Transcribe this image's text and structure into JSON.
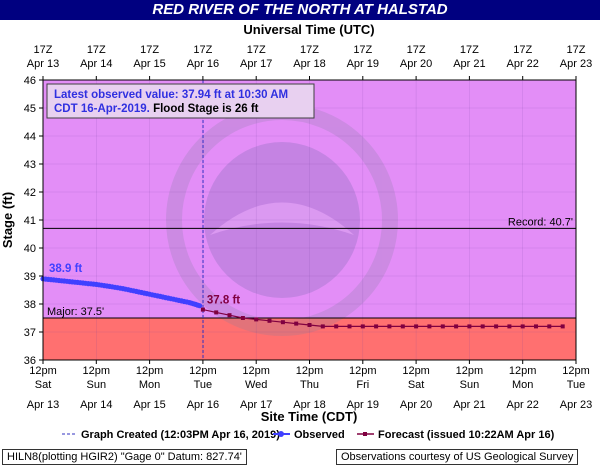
{
  "page_title": "RED RIVER OF THE NORTH AT HALSTAD",
  "footer": {
    "left": "HILN8(plotting HGIR2) \"Gage 0\" Datum: 827.74'",
    "right": "Observations courtesy of US Geological Survey"
  },
  "chart_data": {
    "type": "line",
    "top_axis_title": "Universal Time (UTC)",
    "xlabel": "Site Time (CDT)",
    "ylabel": "Stage (ft)",
    "ylim": [
      36,
      46
    ],
    "yticks": [
      36,
      37,
      38,
      39,
      40,
      41,
      42,
      43,
      44,
      45,
      46
    ],
    "x_domain_days": [
      "Apr 13",
      "Apr 23"
    ],
    "top_ticks": [
      {
        "l1": "17Z",
        "l2": "Apr 13"
      },
      {
        "l1": "17Z",
        "l2": "Apr 14"
      },
      {
        "l1": "17Z",
        "l2": "Apr 15"
      },
      {
        "l1": "17Z",
        "l2": "Apr 16"
      },
      {
        "l1": "17Z",
        "l2": "Apr 17"
      },
      {
        "l1": "17Z",
        "l2": "Apr 18"
      },
      {
        "l1": "17Z",
        "l2": "Apr 19"
      },
      {
        "l1": "17Z",
        "l2": "Apr 20"
      },
      {
        "l1": "17Z",
        "l2": "Apr 21"
      },
      {
        "l1": "17Z",
        "l2": "Apr 22"
      },
      {
        "l1": "17Z",
        "l2": "Apr 23"
      }
    ],
    "bottom_ticks": [
      {
        "l1": "12pm",
        "l2": "Sat",
        "l3": "Apr 13"
      },
      {
        "l1": "12pm",
        "l2": "Sun",
        "l3": "Apr 14"
      },
      {
        "l1": "12pm",
        "l2": "Mon",
        "l3": "Apr 15"
      },
      {
        "l1": "12pm",
        "l2": "Tue",
        "l3": "Apr 16"
      },
      {
        "l1": "12pm",
        "l2": "Wed",
        "l3": "Apr 17"
      },
      {
        "l1": "12pm",
        "l2": "Thu",
        "l3": "Apr 18"
      },
      {
        "l1": "12pm",
        "l2": "Fri",
        "l3": "Apr 19"
      },
      {
        "l1": "12pm",
        "l2": "Sat",
        "l3": "Apr 20"
      },
      {
        "l1": "12pm",
        "l2": "Sun",
        "l3": "Apr 21"
      },
      {
        "l1": "12pm",
        "l2": "Mon",
        "l3": "Apr 22"
      },
      {
        "l1": "12pm",
        "l2": "Tue",
        "l3": "Apr 23"
      }
    ],
    "bands": [
      {
        "name": "major",
        "from": 36,
        "to": 37.5,
        "color": "#ff7070"
      },
      {
        "name": "above",
        "from": 37.5,
        "to": 46,
        "color": "#e38ef7"
      }
    ],
    "thresholds": [
      {
        "label": "Record: 40.7'",
        "value": 40.7
      },
      {
        "label": "Major: 37.5'",
        "value": 37.5
      }
    ],
    "graph_created_at": "2019-04-16 12:03",
    "series": [
      {
        "name": "Observed",
        "color": "#4040ff",
        "x": [
          "2019-04-13 12:00",
          "2019-04-13 18:00",
          "2019-04-14 00:00",
          "2019-04-14 06:00",
          "2019-04-14 12:00",
          "2019-04-14 18:00",
          "2019-04-15 00:00",
          "2019-04-15 06:00",
          "2019-04-15 12:00",
          "2019-04-15 18:00",
          "2019-04-16 00:00",
          "2019-04-16 06:00",
          "2019-04-16 10:30"
        ],
        "y": [
          38.9,
          38.85,
          38.8,
          38.75,
          38.7,
          38.63,
          38.55,
          38.45,
          38.35,
          38.25,
          38.15,
          38.05,
          37.94
        ]
      },
      {
        "name": "Forecast (issued 10:22AM Apr 16)",
        "color": "#800040",
        "x": [
          "2019-04-16 12:00",
          "2019-04-16 18:00",
          "2019-04-17 00:00",
          "2019-04-17 06:00",
          "2019-04-17 12:00",
          "2019-04-17 18:00",
          "2019-04-18 00:00",
          "2019-04-18 06:00",
          "2019-04-18 12:00",
          "2019-04-18 18:00",
          "2019-04-19 00:00",
          "2019-04-19 06:00",
          "2019-04-19 12:00",
          "2019-04-19 18:00",
          "2019-04-20 00:00",
          "2019-04-20 06:00",
          "2019-04-20 12:00",
          "2019-04-20 18:00",
          "2019-04-21 00:00",
          "2019-04-21 06:00",
          "2019-04-21 12:00",
          "2019-04-21 18:00",
          "2019-04-22 00:00",
          "2019-04-22 06:00",
          "2019-04-22 12:00",
          "2019-04-22 18:00",
          "2019-04-23 00:00",
          "2019-04-23 06:00"
        ],
        "y": [
          37.8,
          37.7,
          37.6,
          37.5,
          37.45,
          37.4,
          37.35,
          37.3,
          37.25,
          37.2,
          37.2,
          37.2,
          37.2,
          37.2,
          37.2,
          37.2,
          37.2,
          37.2,
          37.2,
          37.2,
          37.2,
          37.2,
          37.2,
          37.2,
          37.2,
          37.2,
          37.2,
          37.2
        ]
      }
    ],
    "annotations": [
      {
        "text": "38.9 ft",
        "x": "2019-04-13 12:00",
        "y": 38.9,
        "color": "#4040ff"
      },
      {
        "text": "37.8 ft",
        "x": "2019-04-16 12:00",
        "y": 37.8,
        "color": "#800040"
      }
    ],
    "info_box": {
      "line1": "Latest observed value: 37.94 ft at 10:30 AM",
      "line2a": "CDT 16-Apr-2019.",
      "line2b": "Flood Stage is 26 ft"
    },
    "legend": {
      "created": "Graph Created (12:03PM Apr 16, 2019)",
      "observed": "Observed",
      "forecast": "Forecast (issued 10:22AM Apr 16)"
    }
  }
}
